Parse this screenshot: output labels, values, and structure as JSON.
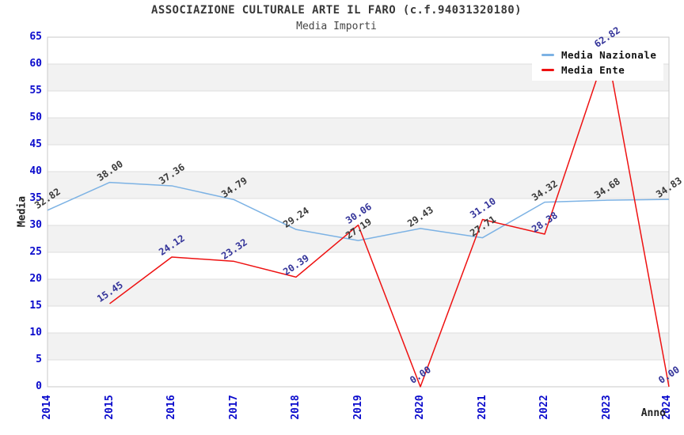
{
  "title": "ASSOCIAZIONE CULTURALE ARTE IL FARO (c.f.94031320180)",
  "subtitle": "Media Importi",
  "y_axis_title": "Media",
  "x_axis_title": "Anno",
  "legend": {
    "items": [
      {
        "label": "Media Nazionale",
        "color": "#7cb2e4"
      },
      {
        "label": "Media Ente",
        "color": "#ee1111"
      }
    ]
  },
  "colors": {
    "tick_label": "#0a0acc",
    "band_fill": "#f2f2f2",
    "grid_line": "#dedede",
    "plot_border": "#c9c9c9"
  },
  "chart_data": {
    "type": "line",
    "x": [
      "2014",
      "2015",
      "2016",
      "2017",
      "2018",
      "2019",
      "2020",
      "2021",
      "2022",
      "2023",
      "2024"
    ],
    "series": [
      {
        "name": "Media Nazionale",
        "color": "#7cb2e4",
        "label_color": "#3a3a3a",
        "values": [
          32.82,
          38.0,
          37.36,
          34.79,
          29.24,
          27.19,
          29.43,
          27.71,
          34.32,
          34.68,
          34.83
        ],
        "labels": [
          "32.82",
          "38.00",
          "37.36",
          "34.79",
          "29.24",
          "27.19",
          "29.43",
          "27.71",
          "34.32",
          "34.68",
          "34.83"
        ]
      },
      {
        "name": "Media Ente",
        "color": "#ee1111",
        "label_color": "#333399",
        "values": [
          null,
          15.45,
          24.12,
          23.32,
          20.39,
          30.06,
          0.0,
          31.1,
          28.38,
          62.82,
          0.0
        ],
        "labels": [
          null,
          "15.45",
          "24.12",
          "23.32",
          "20.39",
          "30.06",
          "0.00",
          "31.10",
          "28.38",
          "62.82",
          "0.00"
        ]
      }
    ],
    "ylim": [
      0,
      65
    ],
    "y_ticks": [
      0,
      5,
      10,
      15,
      20,
      25,
      30,
      35,
      40,
      45,
      50,
      55,
      60,
      65
    ],
    "xlabel": "Anno",
    "ylabel": "Media",
    "legend_position": "top-right",
    "grid": "horizontal-bands"
  }
}
